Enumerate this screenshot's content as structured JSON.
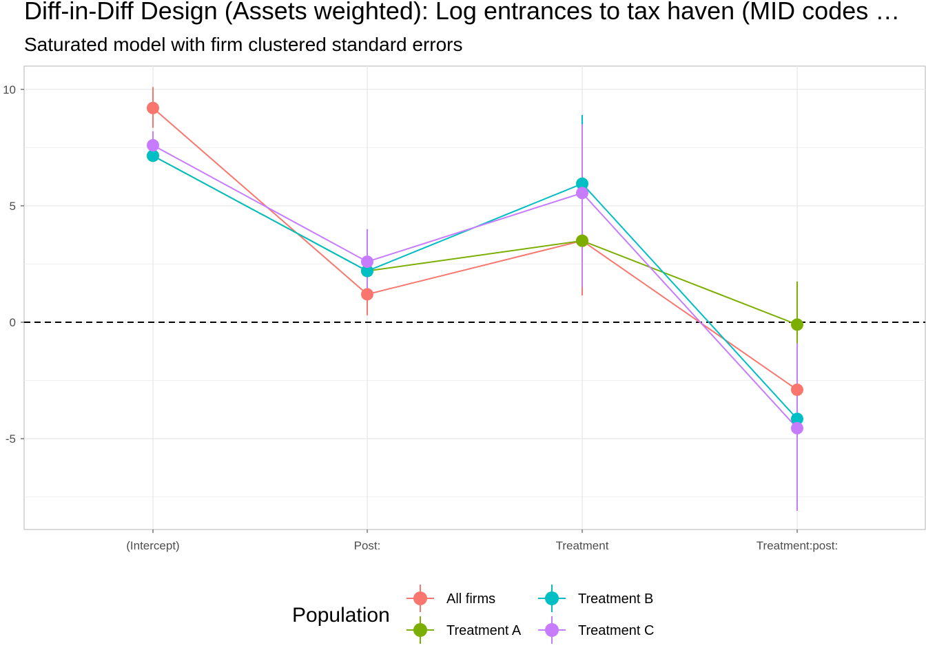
{
  "chart_data": {
    "type": "line",
    "title": "Diff-in-Diff Design (Assets weighted): Log entrances to tax haven (MID codes …",
    "subtitle": "Saturated model with firm clustered standard errors",
    "xlabel": "",
    "ylabel": "",
    "categories": [
      "(Intercept)",
      "Post:",
      "Treatment",
      "Treatment:post:"
    ],
    "ylim": [
      -8.9,
      11
    ],
    "yticks": [
      -5,
      0,
      5,
      10
    ],
    "ytick_labels": [
      "-5",
      "0",
      "5",
      "10"
    ],
    "reference_line": 0,
    "grid": true,
    "legend": {
      "title": "Population",
      "position": "bottom"
    },
    "series": [
      {
        "name": "All firms",
        "color": "#F8766D",
        "values": [
          9.2,
          1.2,
          3.5,
          -2.9
        ],
        "lower": [
          8.35,
          0.3,
          1.15,
          -3.2
        ],
        "upper": [
          10.1,
          2.1,
          5.85,
          -2.6
        ]
      },
      {
        "name": "Treatment A",
        "color": "#7CAE00",
        "values": [
          7.15,
          2.2,
          3.5,
          -0.1
        ],
        "lower": [
          6.9,
          1.7,
          3.3,
          -1.9
        ],
        "upper": [
          7.4,
          2.7,
          3.7,
          1.75
        ]
      },
      {
        "name": "Treatment B",
        "color": "#00BFC4",
        "values": [
          7.15,
          2.2,
          5.95,
          -4.15
        ],
        "lower": [
          6.9,
          1.5,
          3.0,
          -4.4
        ],
        "upper": [
          7.4,
          2.9,
          8.9,
          -0.95
        ]
      },
      {
        "name": "Treatment C",
        "color": "#C77CFF",
        "values": [
          7.6,
          2.6,
          5.55,
          -4.55
        ],
        "lower": [
          7.0,
          1.2,
          1.5,
          -8.1
        ],
        "upper": [
          8.2,
          4.0,
          8.5,
          -0.9
        ]
      }
    ]
  }
}
